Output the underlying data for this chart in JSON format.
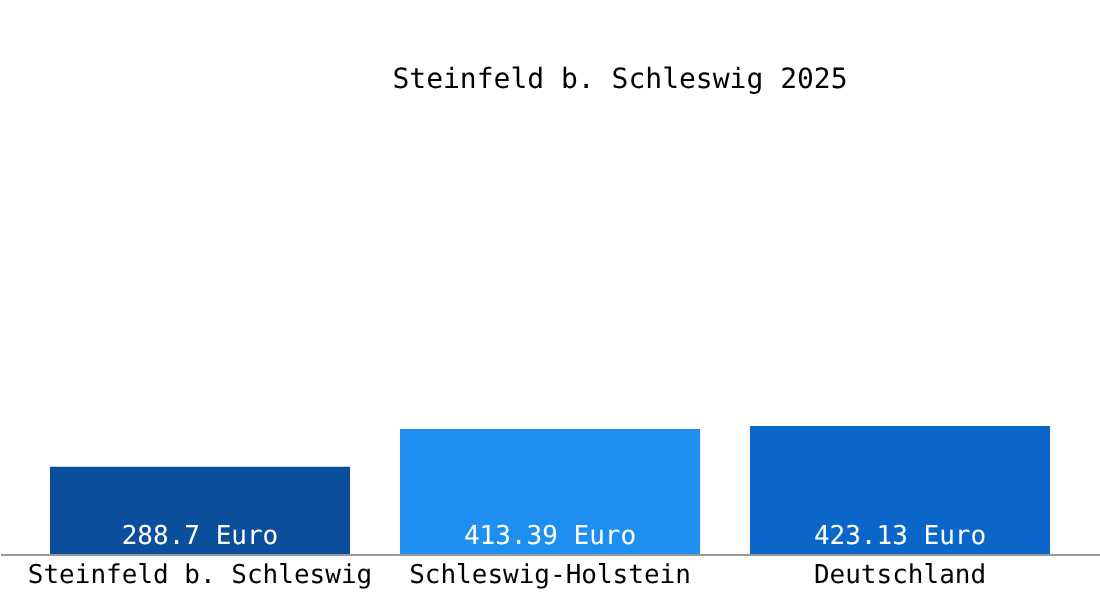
{
  "chart_data": {
    "type": "bar",
    "title": "Steinfeld b. Schleswig 2025",
    "categories": [
      "Steinfeld b. Schleswig",
      "Schleswig-Holstein",
      "Deutschland"
    ],
    "values": [
      288.7,
      413.39,
      423.13
    ],
    "colors": [
      "#0b4f9c",
      "#1e8ff0",
      "#0a66c8"
    ],
    "value_labels": [
      "288.7 Euro",
      "413.39 Euro",
      "423.13 Euro"
    ]
  }
}
